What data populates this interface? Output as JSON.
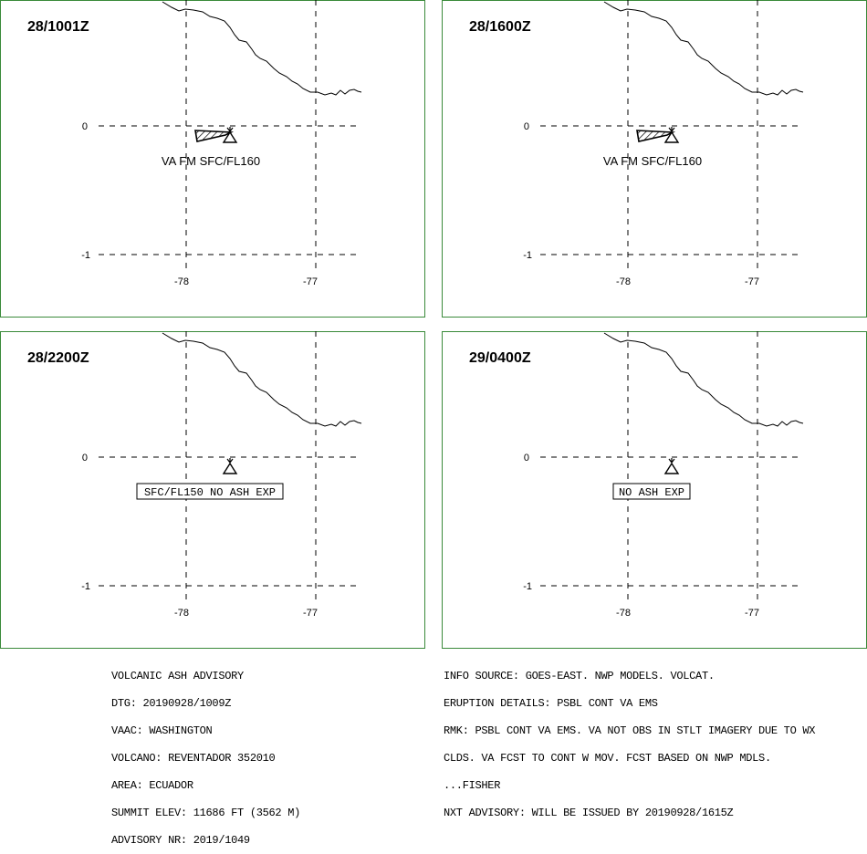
{
  "panels": [
    {
      "time_label": "28/1001Z",
      "lat_labels": [
        "0",
        "-1"
      ],
      "lon_labels": [
        "-78",
        "-77"
      ],
      "ash_label": "VA FM SFC/FL160",
      "boxed_label": null,
      "has_ash_polygon": true
    },
    {
      "time_label": "28/1600Z",
      "lat_labels": [
        "0",
        "-1"
      ],
      "lon_labels": [
        "-78",
        "-77"
      ],
      "ash_label": "VA FM SFC/FL160",
      "boxed_label": null,
      "has_ash_polygon": true
    },
    {
      "time_label": "28/2200Z",
      "lat_labels": [
        "0",
        "-1"
      ],
      "lon_labels": [
        "-78",
        "-77"
      ],
      "ash_label": null,
      "boxed_label": "SFC/FL150 NO ASH EXP",
      "has_ash_polygon": false
    },
    {
      "time_label": "29/0400Z",
      "lat_labels": [
        "0",
        "-1"
      ],
      "lon_labels": [
        "-78",
        "-77"
      ],
      "ash_label": null,
      "boxed_label": "NO ASH EXP",
      "has_ash_polygon": false
    }
  ],
  "advisory_left": [
    "VOLCANIC ASH ADVISORY",
    "DTG: 20190928/1009Z",
    "VAAC: WASHINGTON",
    "VOLCANO: REVENTADOR 352010",
    "AREA: ECUADOR",
    "SUMMIT ELEV: 11686 FT (3562 M)",
    "ADVISORY NR: 2019/1049"
  ],
  "advisory_right": [
    "INFO SOURCE: GOES-EAST. NWP MODELS. VOLCAT.",
    "ERUPTION DETAILS: PSBL CONT VA EMS",
    "RMK: PSBL CONT VA EMS. VA NOT OBS IN STLT IMAGERY DUE TO WX",
    "CLDS. VA FCST TO CONT W MOV. FCST BASED ON NWP MDLS.",
    "...FISHER",
    "NXT ADVISORY: WILL BE ISSUED BY 20190928/1615Z"
  ],
  "colors": {
    "panel_border": "#3a8a3a",
    "lines": "#000000",
    "background": "#ffffff"
  },
  "icons": {
    "volcano": "volcano-icon"
  }
}
